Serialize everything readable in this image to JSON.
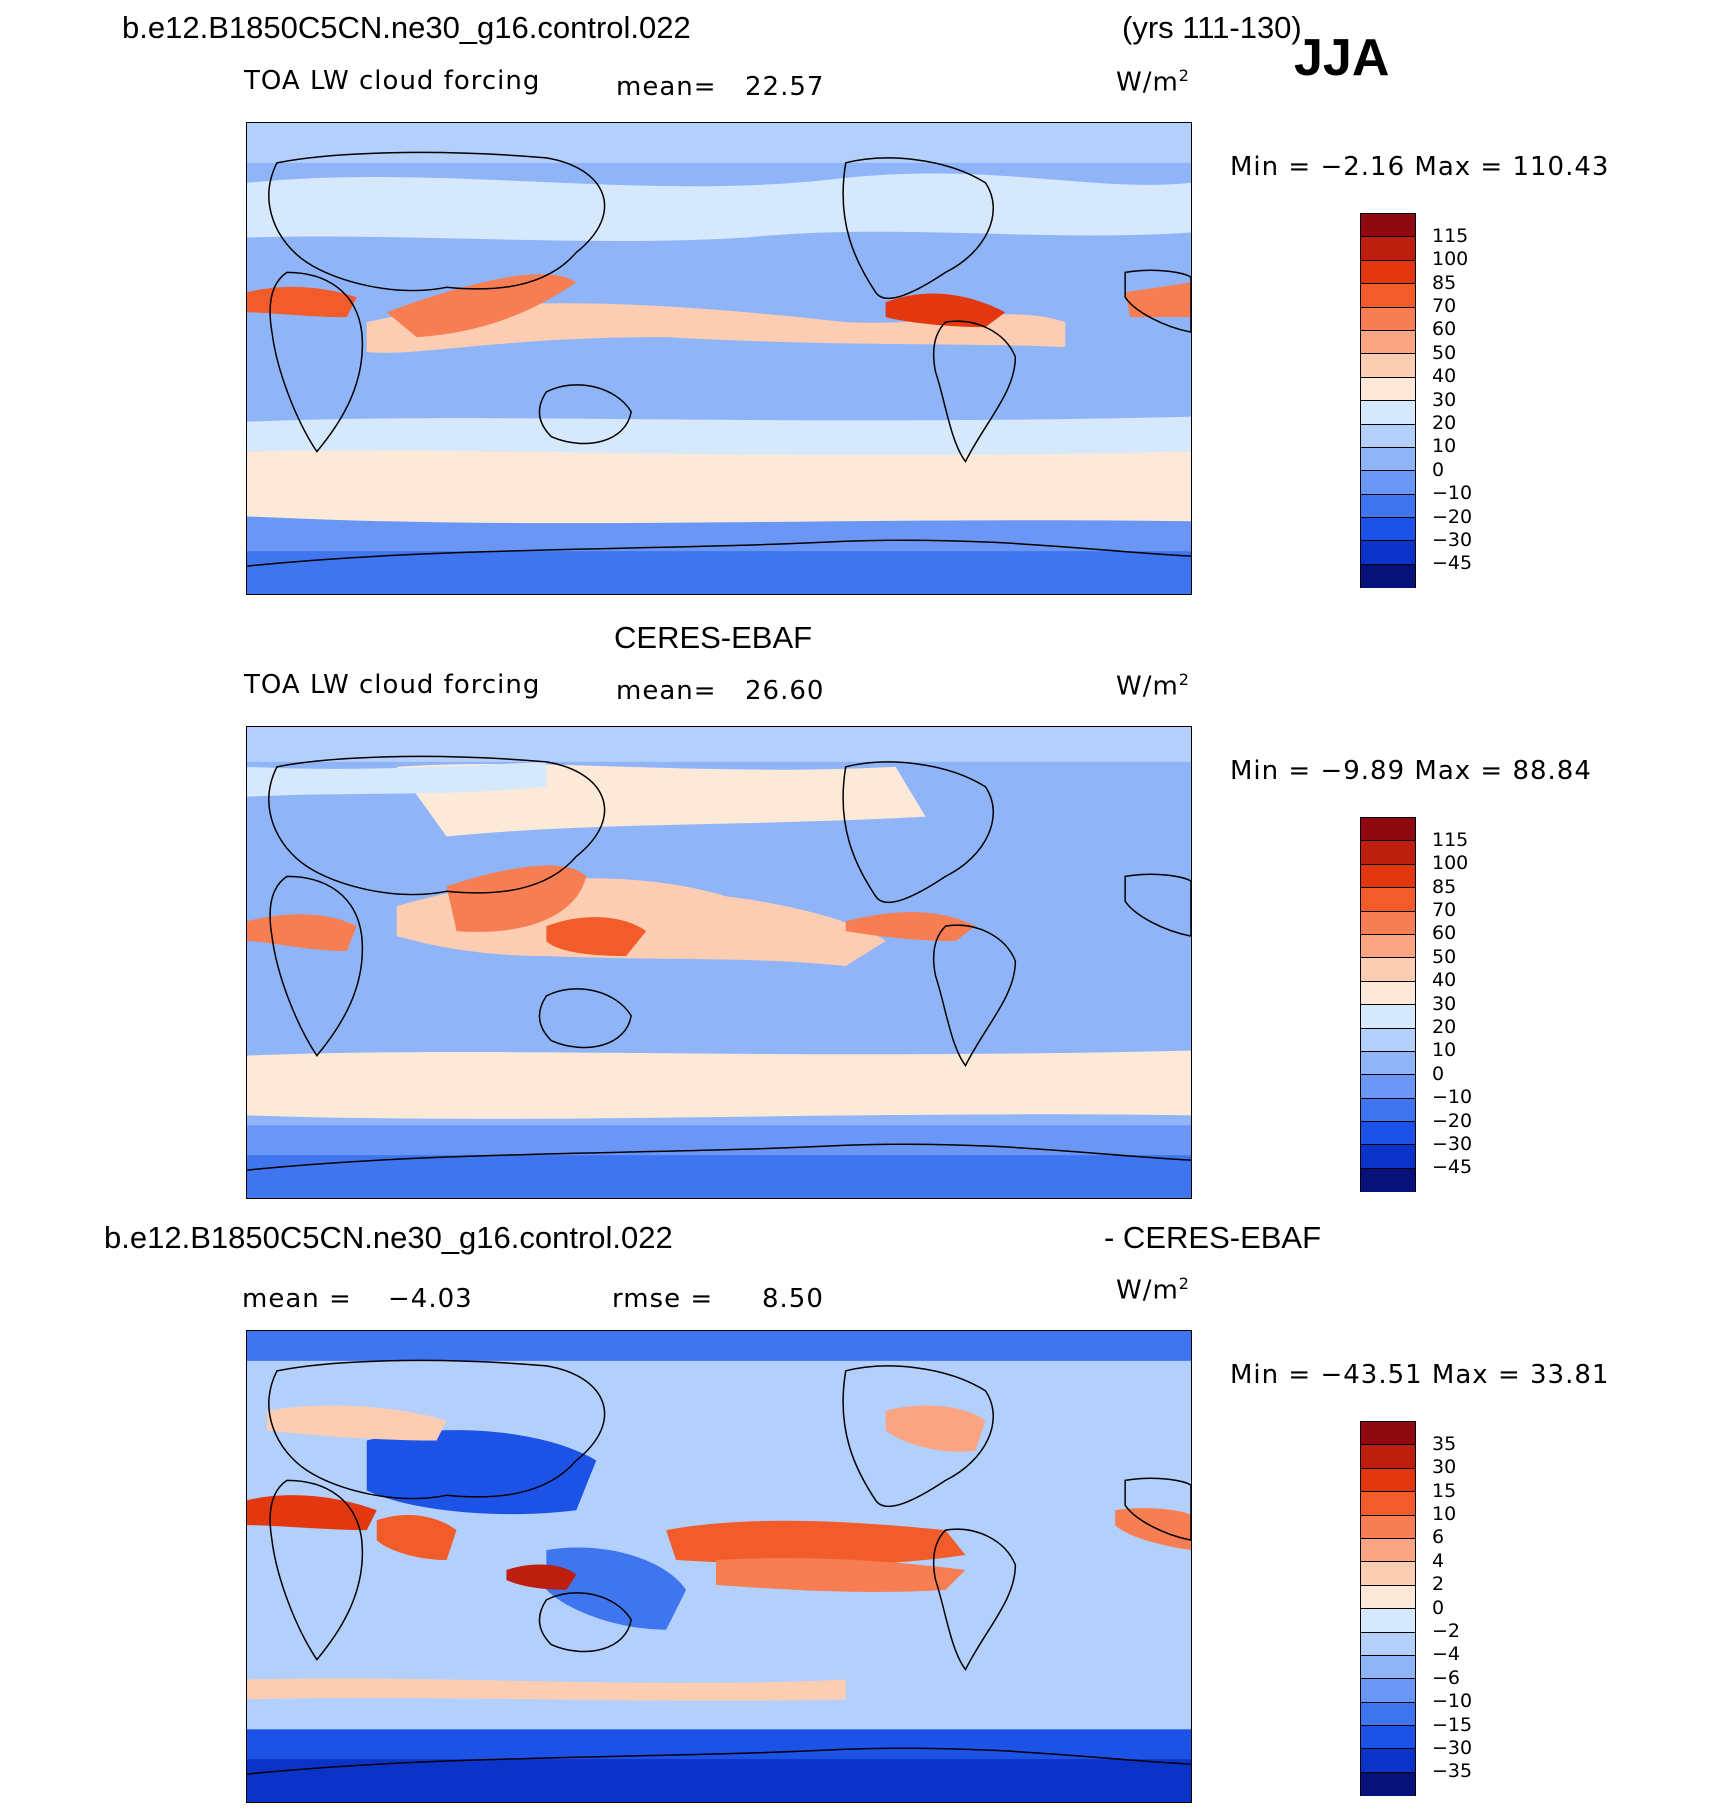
{
  "header": {
    "case_name": "b.e12.B1850C5CN.ne30_g16.control.022",
    "years": "(yrs 111-130)",
    "season": "JJA"
  },
  "panels": [
    {
      "id": "model",
      "variable": "TOA LW cloud forcing",
      "mean_label": "mean=",
      "mean_value": "22.57",
      "units": "W/m",
      "units_sup": "2",
      "minmax": "Min =   −2.16  Max =  110.43",
      "levels": [
        "115",
        "100",
        "85",
        "70",
        "60",
        "50",
        "40",
        "30",
        "20",
        "10",
        "0",
        "−10",
        "−20",
        "−30",
        "−45"
      ],
      "colors": [
        "#8e0a10",
        "#bc1f0d",
        "#e3380f",
        "#f25b2a",
        "#f77d52",
        "#f9a584",
        "#fccdb2",
        "#fde9d8",
        "#d6e8fb",
        "#b2d0fb",
        "#8fb5f8",
        "#6a97f5",
        "#3f75ef",
        "#1d52e6",
        "#0c33c7",
        "#0a1fa0",
        "#06127a"
      ]
    },
    {
      "id": "obs",
      "title": "CERES-EBAF",
      "variable": "TOA LW cloud forcing",
      "mean_label": "mean=",
      "mean_value": "26.60",
      "units": "W/m",
      "units_sup": "2",
      "minmax": "Min =   −9.89  Max =   88.84",
      "levels": [
        "115",
        "100",
        "85",
        "70",
        "60",
        "50",
        "40",
        "30",
        "20",
        "10",
        "0",
        "−10",
        "−20",
        "−30",
        "−45"
      ],
      "colors": [
        "#8e0a10",
        "#bc1f0d",
        "#e3380f",
        "#f25b2a",
        "#f77d52",
        "#f9a584",
        "#fccdb2",
        "#fde9d8",
        "#d6e8fb",
        "#b2d0fb",
        "#8fb5f8",
        "#6a97f5",
        "#3f75ef",
        "#1d52e6",
        "#0c33c7",
        "#0a1fa0",
        "#06127a"
      ]
    },
    {
      "id": "diff",
      "case_name": "b.e12.B1850C5CN.ne30_g16.control.022",
      "title_right": "- CERES-EBAF",
      "mean_label": "mean =",
      "mean_value": "−4.03",
      "rmse_label": "rmse =",
      "rmse_value": "8.50",
      "units": "W/m",
      "units_sup": "2",
      "minmax": "Min = −43.51  Max =   33.81",
      "levels": [
        "35",
        "30",
        "15",
        "10",
        "6",
        "4",
        "2",
        "0",
        "−2",
        "−4",
        "−6",
        "−10",
        "−15",
        "−30",
        "−35"
      ],
      "colors": [
        "#8e0a10",
        "#bc1f0d",
        "#e3380f",
        "#f25b2a",
        "#f77d52",
        "#f9a584",
        "#fccdb2",
        "#fde9d8",
        "#d6e8fb",
        "#b2d0fb",
        "#8fb5f8",
        "#6a97f5",
        "#3f75ef",
        "#1d52e6",
        "#0c33c7",
        "#0a1fa0",
        "#06127a"
      ]
    }
  ]
}
